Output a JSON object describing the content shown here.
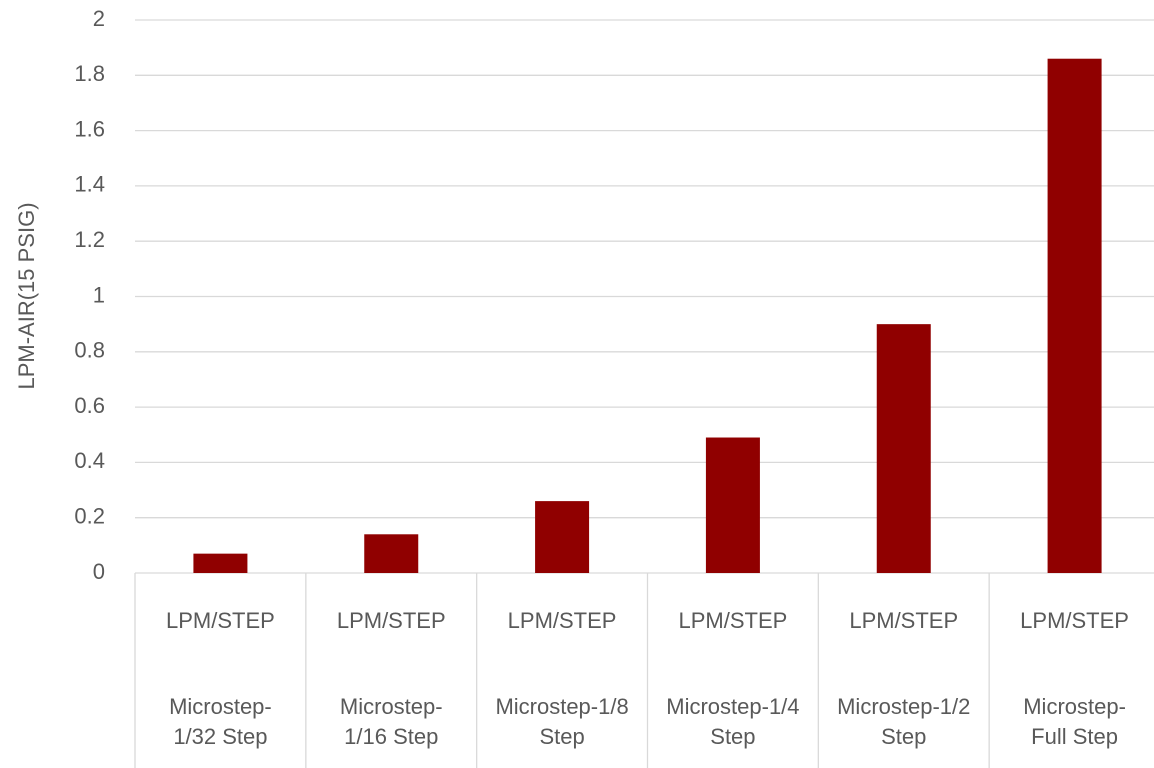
{
  "chart_data": {
    "type": "bar",
    "y_label": "LPM-AIR(15 PSIG)",
    "category_groups": [
      "LPM/STEP",
      "LPM/STEP",
      "LPM/STEP",
      "LPM/STEP",
      "LPM/STEP",
      "LPM/STEP"
    ],
    "categories": [
      "Microstep-1/32 Step",
      "Microstep-1/16 Step",
      "Microstep-1/8 Step",
      "Microstep-1/4 Step",
      "Microstep-1/2 Step",
      "Microstep-Full Step"
    ],
    "values": [
      0.07,
      0.14,
      0.26,
      0.49,
      0.9,
      1.86
    ],
    "color": "#900000",
    "ylim": [
      0,
      2
    ],
    "yticks": [
      0,
      0.2,
      0.4,
      0.6,
      0.8,
      1,
      1.2,
      1.4,
      1.6,
      1.8,
      2
    ],
    "grid": true
  }
}
